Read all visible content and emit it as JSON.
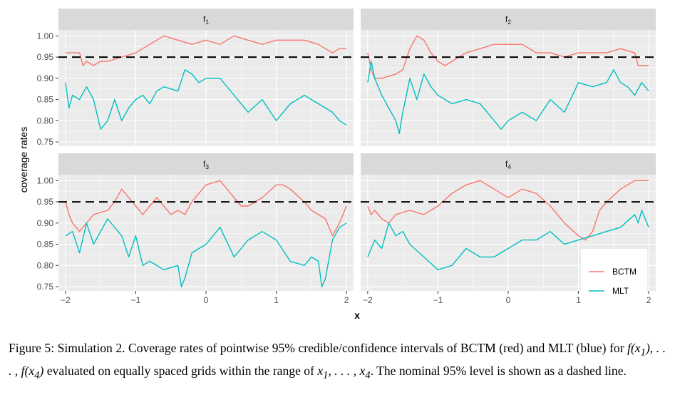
{
  "chart_data": {
    "type": "line",
    "xlabel": "x",
    "ylabel": "coverage rates",
    "xlim": [
      -2.1,
      2.1
    ],
    "ylim": [
      0.74,
      1.014
    ],
    "xticks": [
      -2,
      -1,
      0,
      1,
      2
    ],
    "xtick_labels": [
      "−2",
      "−1",
      "0",
      "1",
      "2"
    ],
    "yticks": [
      0.75,
      0.8,
      0.85,
      0.9,
      0.95,
      1.0
    ],
    "ytick_labels": [
      "0.75",
      "0.80",
      "0.85",
      "0.90",
      "0.95",
      "1.00"
    ],
    "reference_line": {
      "y": 0.95,
      "style": "dashed"
    },
    "legend": {
      "placement": "bottom-right",
      "entries": [
        {
          "name": "BCTM",
          "color": "#F8766D"
        },
        {
          "name": "MLT",
          "color": "#00BFC4"
        }
      ]
    },
    "grid": true,
    "panels": [
      {
        "facet": "f",
        "subscript": "1",
        "series": [
          {
            "name": "BCTM",
            "color": "#F8766D",
            "x": [
              -2,
              -1.8,
              -1.75,
              -1.7,
              -1.6,
              -1.5,
              -1.4,
              -1.2,
              -1.0,
              -0.8,
              -0.6,
              -0.4,
              -0.2,
              0.0,
              0.2,
              0.4,
              0.6,
              0.8,
              1.0,
              1.2,
              1.4,
              1.6,
              1.7,
              1.8,
              1.9,
              2.0
            ],
            "y": [
              0.96,
              0.96,
              0.93,
              0.94,
              0.93,
              0.94,
              0.94,
              0.95,
              0.96,
              0.98,
              1.0,
              0.99,
              0.98,
              0.99,
              0.98,
              1.0,
              0.99,
              0.98,
              0.99,
              0.99,
              0.99,
              0.98,
              0.97,
              0.96,
              0.97,
              0.97
            ]
          },
          {
            "name": "MLT",
            "color": "#00BFC4",
            "x": [
              -2,
              -1.95,
              -1.9,
              -1.8,
              -1.7,
              -1.6,
              -1.5,
              -1.45,
              -1.4,
              -1.3,
              -1.2,
              -1.1,
              -1.0,
              -0.9,
              -0.8,
              -0.7,
              -0.6,
              -0.4,
              -0.3,
              -0.2,
              -0.1,
              0.0,
              0.2,
              0.4,
              0.6,
              0.8,
              1.0,
              1.2,
              1.4,
              1.6,
              1.8,
              1.9,
              2.0
            ],
            "y": [
              0.89,
              0.83,
              0.86,
              0.85,
              0.88,
              0.85,
              0.78,
              0.79,
              0.8,
              0.85,
              0.8,
              0.83,
              0.85,
              0.86,
              0.84,
              0.87,
              0.88,
              0.87,
              0.92,
              0.91,
              0.89,
              0.9,
              0.9,
              0.86,
              0.82,
              0.85,
              0.8,
              0.84,
              0.86,
              0.84,
              0.82,
              0.8,
              0.79
            ]
          }
        ]
      },
      {
        "facet": "f",
        "subscript": "2",
        "series": [
          {
            "name": "BCTM",
            "color": "#F8766D",
            "x": [
              -2,
              -1.95,
              -1.9,
              -1.8,
              -1.6,
              -1.5,
              -1.4,
              -1.3,
              -1.2,
              -1.1,
              -1.0,
              -0.9,
              -0.8,
              -0.6,
              -0.4,
              -0.2,
              0.0,
              0.2,
              0.4,
              0.6,
              0.8,
              1.0,
              1.2,
              1.4,
              1.6,
              1.8,
              1.85,
              1.9,
              2.0
            ],
            "y": [
              0.96,
              0.92,
              0.9,
              0.9,
              0.91,
              0.92,
              0.97,
              1.0,
              0.99,
              0.96,
              0.94,
              0.93,
              0.94,
              0.96,
              0.97,
              0.98,
              0.98,
              0.98,
              0.96,
              0.96,
              0.95,
              0.96,
              0.96,
              0.96,
              0.97,
              0.96,
              0.93,
              0.93,
              0.93
            ]
          },
          {
            "name": "MLT",
            "color": "#00BFC4",
            "x": [
              -2,
              -1.95,
              -1.9,
              -1.8,
              -1.7,
              -1.6,
              -1.55,
              -1.5,
              -1.4,
              -1.3,
              -1.2,
              -1.1,
              -1.0,
              -0.8,
              -0.6,
              -0.4,
              -0.2,
              -0.1,
              0.0,
              0.2,
              0.4,
              0.6,
              0.8,
              1.0,
              1.2,
              1.4,
              1.5,
              1.6,
              1.7,
              1.8,
              1.9,
              2.0
            ],
            "y": [
              0.89,
              0.94,
              0.9,
              0.86,
              0.83,
              0.8,
              0.77,
              0.82,
              0.9,
              0.85,
              0.91,
              0.88,
              0.86,
              0.84,
              0.85,
              0.84,
              0.8,
              0.78,
              0.8,
              0.82,
              0.8,
              0.85,
              0.82,
              0.89,
              0.88,
              0.89,
              0.92,
              0.89,
              0.88,
              0.86,
              0.89,
              0.87
            ]
          }
        ]
      },
      {
        "facet": "f",
        "subscript": "3",
        "series": [
          {
            "name": "BCTM",
            "color": "#F8766D",
            "x": [
              -2,
              -1.95,
              -1.9,
              -1.8,
              -1.7,
              -1.6,
              -1.4,
              -1.3,
              -1.2,
              -1.1,
              -1.0,
              -0.9,
              -0.8,
              -0.7,
              -0.6,
              -0.5,
              -0.4,
              -0.3,
              -0.2,
              0.0,
              0.2,
              0.4,
              0.5,
              0.6,
              0.8,
              1.0,
              1.1,
              1.2,
              1.4,
              1.5,
              1.6,
              1.7,
              1.8,
              1.9,
              2.0
            ],
            "y": [
              0.95,
              0.92,
              0.9,
              0.88,
              0.9,
              0.92,
              0.93,
              0.95,
              0.98,
              0.96,
              0.94,
              0.92,
              0.94,
              0.96,
              0.94,
              0.92,
              0.93,
              0.92,
              0.95,
              0.99,
              1.0,
              0.96,
              0.94,
              0.94,
              0.96,
              0.99,
              0.99,
              0.98,
              0.95,
              0.93,
              0.92,
              0.91,
              0.87,
              0.9,
              0.94
            ]
          },
          {
            "name": "MLT",
            "color": "#00BFC4",
            "x": [
              -2,
              -1.9,
              -1.8,
              -1.7,
              -1.6,
              -1.5,
              -1.4,
              -1.2,
              -1.1,
              -1.0,
              -0.9,
              -0.8,
              -0.6,
              -0.4,
              -0.35,
              -0.3,
              -0.2,
              0.0,
              0.2,
              0.4,
              0.6,
              0.8,
              1.0,
              1.2,
              1.4,
              1.5,
              1.6,
              1.65,
              1.7,
              1.8,
              1.9,
              2.0
            ],
            "y": [
              0.87,
              0.88,
              0.83,
              0.9,
              0.85,
              0.88,
              0.91,
              0.87,
              0.82,
              0.87,
              0.8,
              0.81,
              0.79,
              0.8,
              0.75,
              0.77,
              0.83,
              0.85,
              0.89,
              0.82,
              0.86,
              0.88,
              0.86,
              0.81,
              0.8,
              0.82,
              0.81,
              0.75,
              0.77,
              0.86,
              0.89,
              0.9
            ]
          }
        ]
      },
      {
        "facet": "f",
        "subscript": "4",
        "series": [
          {
            "name": "BCTM",
            "color": "#F8766D",
            "x": [
              -2,
              -1.95,
              -1.9,
              -1.8,
              -1.7,
              -1.6,
              -1.4,
              -1.2,
              -1.0,
              -0.8,
              -0.6,
              -0.4,
              -0.2,
              -0.1,
              0.0,
              0.2,
              0.4,
              0.6,
              0.8,
              1.0,
              1.1,
              1.2,
              1.3,
              1.4,
              1.6,
              1.8,
              1.9,
              2.0
            ],
            "y": [
              0.94,
              0.92,
              0.93,
              0.91,
              0.9,
              0.92,
              0.93,
              0.92,
              0.94,
              0.97,
              0.99,
              1.0,
              0.98,
              0.97,
              0.96,
              0.98,
              0.97,
              0.94,
              0.9,
              0.87,
              0.86,
              0.88,
              0.93,
              0.95,
              0.98,
              1.0,
              1.0,
              1.0
            ]
          },
          {
            "name": "MLT",
            "color": "#00BFC4",
            "x": [
              -2,
              -1.9,
              -1.8,
              -1.7,
              -1.6,
              -1.5,
              -1.4,
              -1.2,
              -1.0,
              -0.8,
              -0.6,
              -0.4,
              -0.2,
              0.0,
              0.2,
              0.4,
              0.6,
              0.8,
              1.0,
              1.2,
              1.4,
              1.6,
              1.8,
              1.85,
              1.9,
              2.0
            ],
            "y": [
              0.82,
              0.86,
              0.84,
              0.9,
              0.87,
              0.88,
              0.85,
              0.82,
              0.79,
              0.8,
              0.84,
              0.82,
              0.82,
              0.84,
              0.86,
              0.86,
              0.88,
              0.85,
              0.86,
              0.87,
              0.88,
              0.89,
              0.92,
              0.9,
              0.93,
              0.89
            ]
          }
        ]
      }
    ]
  },
  "caption": {
    "text1": "Figure 5: Simulation 2. Coverage rates of pointwise 95% credible/confidence intervals of BCTM (red) and MLT (blue) for ",
    "math1": "f(x",
    "math1_sub": "1",
    "math1_close": "), . . . , f(x",
    "math1_sub2": "4",
    "math1_end": ")",
    "text2": " evaluated on equally spaced grids within the range of ",
    "math2": "x",
    "math2_sub": "1",
    "math2_mid": ", . . . , x",
    "math2_sub2": "4",
    "text3": ". The nominal 95% level is shown as a dashed line."
  }
}
